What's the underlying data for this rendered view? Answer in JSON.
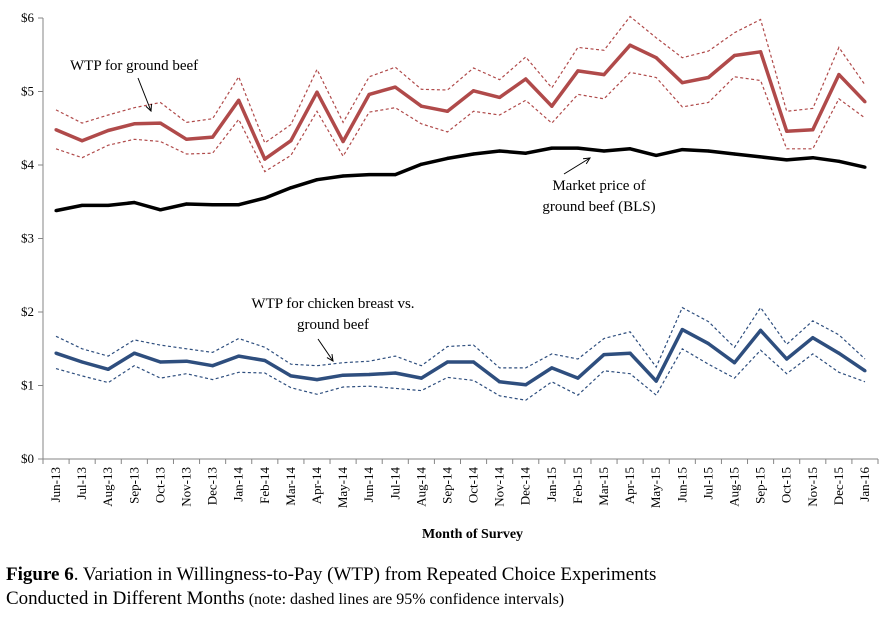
{
  "chart_data": {
    "type": "line",
    "categories": [
      "Jun-13",
      "Jul-13",
      "Aug-13",
      "Sep-13",
      "Oct-13",
      "Nov-13",
      "Dec-13",
      "Jan-14",
      "Feb-14",
      "Mar-14",
      "Apr-14",
      "May-14",
      "Jun-14",
      "Jul-14",
      "Aug-14",
      "Sep-14",
      "Oct-14",
      "Nov-14",
      "Dec-14",
      "Jan-15",
      "Feb-15",
      "Mar-15",
      "Apr-15",
      "May-15",
      "Jun-15",
      "Jul-15",
      "Aug-15",
      "Sep-15",
      "Oct-15",
      "Nov-15",
      "Dec-15",
      "Jan-16"
    ],
    "xlabel": "Month of Survey",
    "ylabel": "",
    "ylim": [
      0,
      6
    ],
    "yticks": [
      "$0",
      "$1",
      "$2",
      "$3",
      "$4",
      "$5",
      "$6"
    ],
    "grid": false,
    "legend": "none",
    "series": [
      {
        "name": "WTP for ground beef",
        "color": "#b04a4a",
        "values": [
          4.48,
          4.33,
          4.47,
          4.56,
          4.57,
          4.35,
          4.38,
          4.88,
          4.08,
          4.33,
          4.99,
          4.32,
          4.96,
          5.06,
          4.8,
          4.73,
          5.01,
          4.92,
          5.17,
          4.8,
          5.28,
          5.23,
          5.63,
          5.46,
          5.12,
          5.19,
          5.49,
          5.54,
          4.46,
          4.48,
          5.23,
          4.86
        ],
        "ci_upper": [
          4.75,
          4.57,
          4.68,
          4.78,
          4.85,
          4.58,
          4.63,
          5.2,
          4.3,
          4.55,
          5.3,
          4.58,
          5.2,
          5.33,
          5.03,
          5.02,
          5.32,
          5.16,
          5.47,
          5.05,
          5.6,
          5.56,
          6.02,
          5.73,
          5.46,
          5.55,
          5.8,
          5.98,
          4.73,
          4.77,
          5.6,
          5.09
        ],
        "ci_lower": [
          4.22,
          4.1,
          4.27,
          4.35,
          4.32,
          4.15,
          4.16,
          4.62,
          3.91,
          4.13,
          4.73,
          4.12,
          4.72,
          4.78,
          4.56,
          4.45,
          4.73,
          4.68,
          4.88,
          4.57,
          4.96,
          4.9,
          5.26,
          5.19,
          4.79,
          4.85,
          5.2,
          5.15,
          4.22,
          4.22,
          4.9,
          4.64
        ]
      },
      {
        "name": "Market price of ground beef (BLS)",
        "color": "#000000",
        "values": [
          3.38,
          3.45,
          3.45,
          3.49,
          3.39,
          3.47,
          3.46,
          3.46,
          3.55,
          3.69,
          3.8,
          3.85,
          3.87,
          3.87,
          4.01,
          4.09,
          4.15,
          4.19,
          4.16,
          4.23,
          4.23,
          4.19,
          4.22,
          4.13,
          4.21,
          4.19,
          4.15,
          4.11,
          4.07,
          4.1,
          4.05,
          3.97
        ]
      },
      {
        "name": "WTP for chicken breast vs. ground beef",
        "color": "#2e4e7e",
        "values": [
          1.44,
          1.32,
          1.22,
          1.44,
          1.32,
          1.33,
          1.27,
          1.4,
          1.34,
          1.13,
          1.08,
          1.14,
          1.15,
          1.17,
          1.1,
          1.32,
          1.32,
          1.05,
          1.01,
          1.24,
          1.1,
          1.42,
          1.44,
          1.06,
          1.76,
          1.57,
          1.31,
          1.75,
          1.36,
          1.65,
          1.44,
          1.2
        ],
        "ci_upper": [
          1.67,
          1.5,
          1.4,
          1.62,
          1.55,
          1.5,
          1.45,
          1.64,
          1.52,
          1.29,
          1.27,
          1.31,
          1.33,
          1.4,
          1.27,
          1.53,
          1.55,
          1.24,
          1.24,
          1.43,
          1.36,
          1.64,
          1.73,
          1.25,
          2.06,
          1.87,
          1.52,
          2.06,
          1.56,
          1.88,
          1.69,
          1.36
        ],
        "ci_lower": [
          1.23,
          1.13,
          1.04,
          1.27,
          1.1,
          1.16,
          1.08,
          1.18,
          1.17,
          0.97,
          0.88,
          0.98,
          0.99,
          0.96,
          0.93,
          1.11,
          1.07,
          0.86,
          0.8,
          1.05,
          0.87,
          1.2,
          1.16,
          0.87,
          1.5,
          1.29,
          1.1,
          1.48,
          1.16,
          1.43,
          1.18,
          1.05
        ]
      }
    ],
    "annotations": [
      {
        "id": "beef",
        "lines": [
          "WTP for ground beef"
        ]
      },
      {
        "id": "market",
        "lines": [
          "Market price of",
          "ground beef (BLS)"
        ]
      },
      {
        "id": "chicken",
        "lines": [
          "WTP for chicken breast vs.",
          "ground beef"
        ]
      }
    ]
  },
  "caption": {
    "figure_label": "Figure 6",
    "title_text": ".  Variation in Willingness-to-Pay (WTP) from Repeated Choice Experiments",
    "title_text_line2": "Conducted in Different Months",
    "note": " (note: dashed lines are 95% confidence intervals)"
  }
}
